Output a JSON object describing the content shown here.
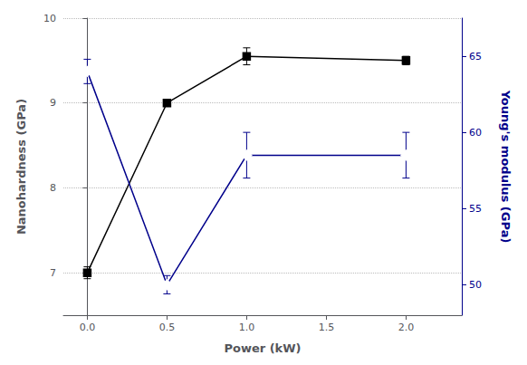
{
  "chart_data": {
    "type": "line",
    "xlabel": "Power (kW)",
    "ylabel": "Nanohardness (GPa)",
    "y2label": "Young's modulus (GPa)",
    "x": [
      0.0,
      0.5,
      1.0,
      2.0
    ],
    "xlim": [
      -0.15,
      2.35
    ],
    "xticks": [
      {
        "value": 0.0,
        "label": "0.0"
      },
      0.5,
      {
        "value": 1.0,
        "label": "1.0"
      },
      1.5,
      {
        "value": 2.0,
        "label": "2.0"
      }
    ],
    "ylim": [
      6.5,
      10.0
    ],
    "yticks": [
      7,
      8,
      9,
      10
    ],
    "y2lim": [
      48.0,
      67.5
    ],
    "y2ticks": [
      50,
      55,
      60,
      65
    ],
    "grid": true,
    "series": [
      {
        "color": "#000000",
        "marker": "square",
        "values": [
          7.0,
          9.0,
          9.55,
          9.5
        ],
        "errors": [
          0.07,
          0.0,
          0.1,
          0.05
        ]
      },
      {
        "color": "#00008B",
        "marker": "diamond",
        "axis": "y2",
        "values": [
          64.0,
          50.0,
          58.5,
          58.5
        ],
        "errors": [
          0.8,
          0.6,
          1.5,
          1.5
        ]
      }
    ]
  }
}
